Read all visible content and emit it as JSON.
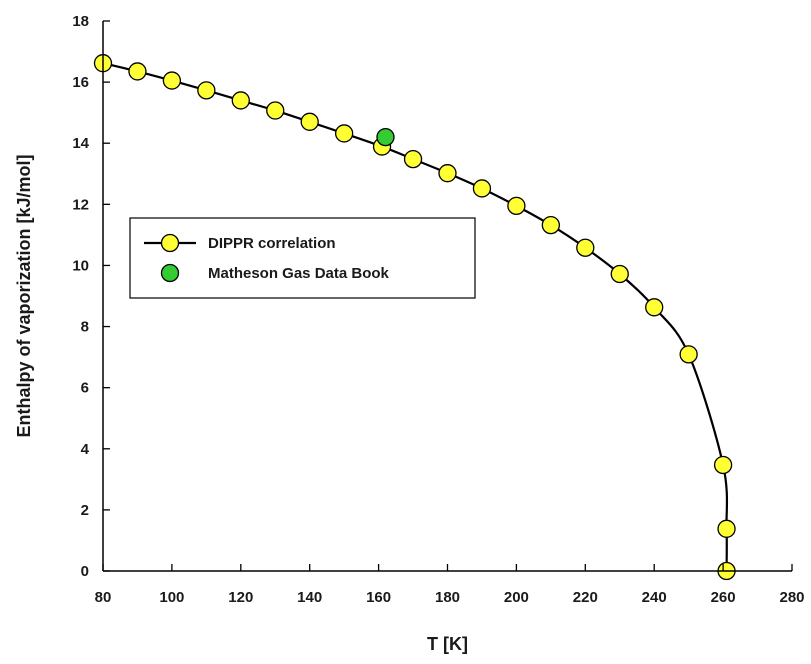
{
  "chart_data": {
    "type": "line",
    "xlabel": "T [K]",
    "ylabel": "Enthalpy of vaporization [kJ/mol]",
    "xlim": [
      80,
      280
    ],
    "ylim": [
      0,
      18
    ],
    "xticks": [
      80,
      100,
      120,
      140,
      160,
      180,
      200,
      220,
      240,
      260,
      280
    ],
    "yticks": [
      0,
      2,
      4,
      6,
      8,
      10,
      12,
      14,
      16,
      18
    ],
    "grid": false,
    "legend_position": "left-middle",
    "series": [
      {
        "name": "DIPPR correlation",
        "style": "line-with-markers",
        "line_color": "#000000",
        "marker_color": "#ffff33",
        "x": [
          80,
          90,
          100,
          110,
          120,
          130,
          140,
          150,
          161,
          170,
          180,
          190,
          200,
          210,
          220,
          230,
          240,
          250,
          260,
          261,
          261
        ],
        "y": [
          16.62,
          16.35,
          16.05,
          15.73,
          15.4,
          15.07,
          14.7,
          14.32,
          13.89,
          13.48,
          13.02,
          12.52,
          11.95,
          11.32,
          10.58,
          9.72,
          8.63,
          7.09,
          3.47,
          1.38,
          0.0
        ]
      },
      {
        "name": "Matheson Gas Data Book",
        "style": "markers",
        "marker_color": "#33cc33",
        "x": [
          162
        ],
        "y": [
          14.2
        ]
      }
    ]
  }
}
